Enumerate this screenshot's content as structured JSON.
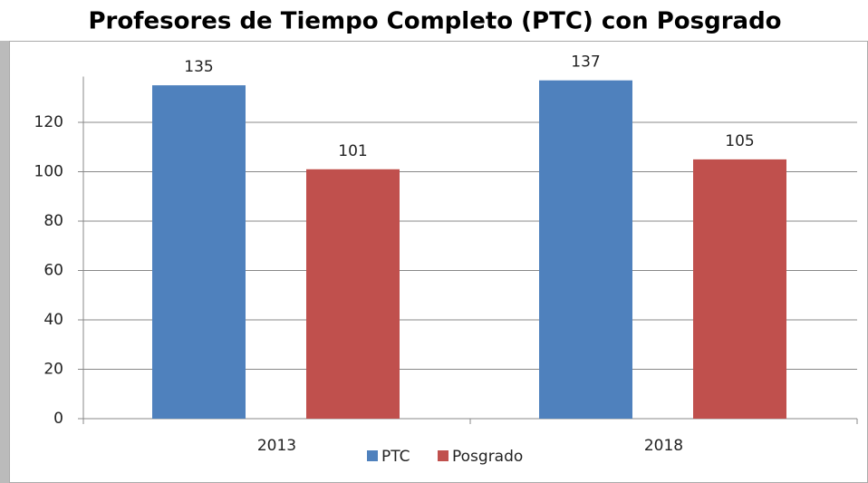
{
  "chart_data": {
    "type": "bar",
    "title": "Profesores de Tiempo Completo (PTC) con Posgrado",
    "categories": [
      "2013",
      "2018"
    ],
    "series": [
      {
        "name": "PTC",
        "color": "#4f81bd",
        "values": [
          135,
          137
        ]
      },
      {
        "name": "Posgrado",
        "color": "#c0504d",
        "values": [
          101,
          105
        ]
      }
    ],
    "ylim": [
      0,
      140
    ],
    "yticks": [
      0,
      20,
      40,
      60,
      80,
      100,
      120
    ],
    "grid": true,
    "legend": "bottom"
  }
}
